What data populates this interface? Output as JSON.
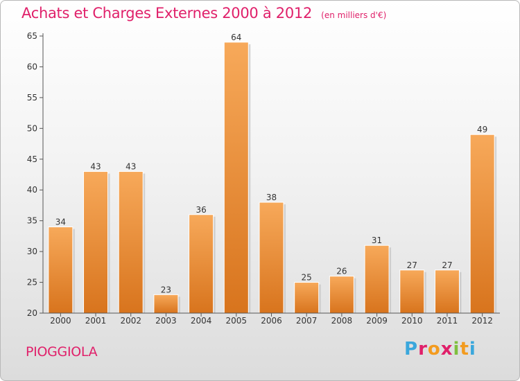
{
  "header": {
    "title": "Achats et Charges Externes 2000 à 2012",
    "unit": "(en milliers d'€)"
  },
  "footer": {
    "commune": "PIOGGIOLA",
    "logo_text": "Proxiti",
    "logo_colors": [
      "#3aa7dc",
      "#e0206a",
      "#f39b1f",
      "#e0206a",
      "#7fbf3f",
      "#f39b1f",
      "#3aa7dc"
    ]
  },
  "colors": {
    "title": "#e0206a",
    "bar_light": "#f7a95a",
    "bar_dark": "#d8741d",
    "axis": "#555555"
  },
  "chart_data": {
    "type": "bar",
    "title": "Achats et Charges Externes 2000 à 2012",
    "subtitle": "(en milliers d'€)",
    "xlabel": "",
    "ylabel": "",
    "categories": [
      "2000",
      "2001",
      "2002",
      "2003",
      "2004",
      "2005",
      "2006",
      "2007",
      "2008",
      "2009",
      "2010",
      "2011",
      "2012"
    ],
    "values": [
      34,
      43,
      43,
      23,
      36,
      64,
      38,
      25,
      26,
      31,
      27,
      27,
      49
    ],
    "ylim": [
      20,
      65
    ],
    "yticks": [
      20,
      25,
      30,
      35,
      40,
      45,
      50,
      55,
      60,
      65
    ],
    "grid": false,
    "data_labels": true
  }
}
